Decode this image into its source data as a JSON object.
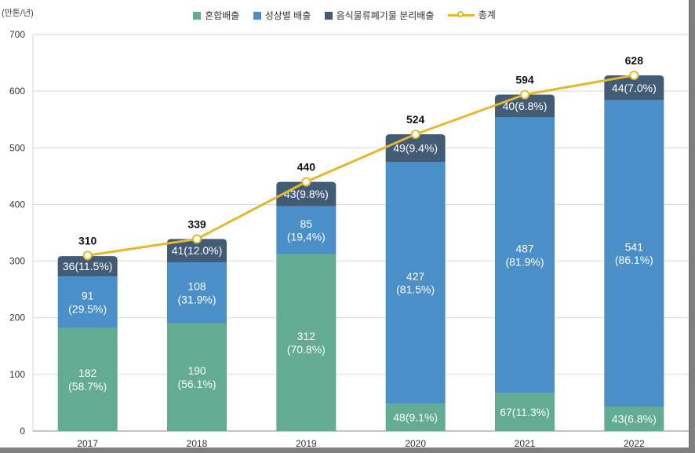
{
  "chart_data": {
    "type": "bar",
    "stacked": true,
    "unit_label": "만톤/년",
    "categories": [
      "2017",
      "2018",
      "2019",
      "2020",
      "2021",
      "2022"
    ],
    "ylim": [
      0,
      700
    ],
    "yticks": [
      0,
      100,
      200,
      300,
      400,
      500,
      600,
      700
    ],
    "series": [
      {
        "name": "혼합배출",
        "color": "#63ab93",
        "values": [
          182,
          190,
          312,
          48,
          67,
          43
        ],
        "labels": [
          "182\n(58.7%)",
          "190\n(56.1%)",
          "312\n(70.8%)",
          "48(9.1%)",
          "67(11.3%)",
          "43(6.8%)"
        ]
      },
      {
        "name": "성상별 배출",
        "color": "#4b8fc8",
        "values": [
          91,
          108,
          85,
          427,
          487,
          541
        ],
        "labels": [
          "91\n(29.5%)",
          "108\n(31.9%)",
          "85\n(19,4%)",
          "427\n(81.5%)",
          "487\n(81.9%)",
          "541\n(86.1%)"
        ]
      },
      {
        "name": "음식물류폐기물 분리배출",
        "color": "#435c76",
        "values": [
          36,
          41,
          43,
          49,
          40,
          44
        ],
        "labels": [
          "36(11.5%)",
          "41(12.0%)",
          "43(9.8%)",
          "49(9.4%)",
          "40(6.8%)",
          "44(7.0%)"
        ]
      }
    ],
    "total": {
      "name": "총계",
      "color": "#e6b82e",
      "values": [
        310,
        339,
        440,
        524,
        594,
        628
      ]
    }
  }
}
